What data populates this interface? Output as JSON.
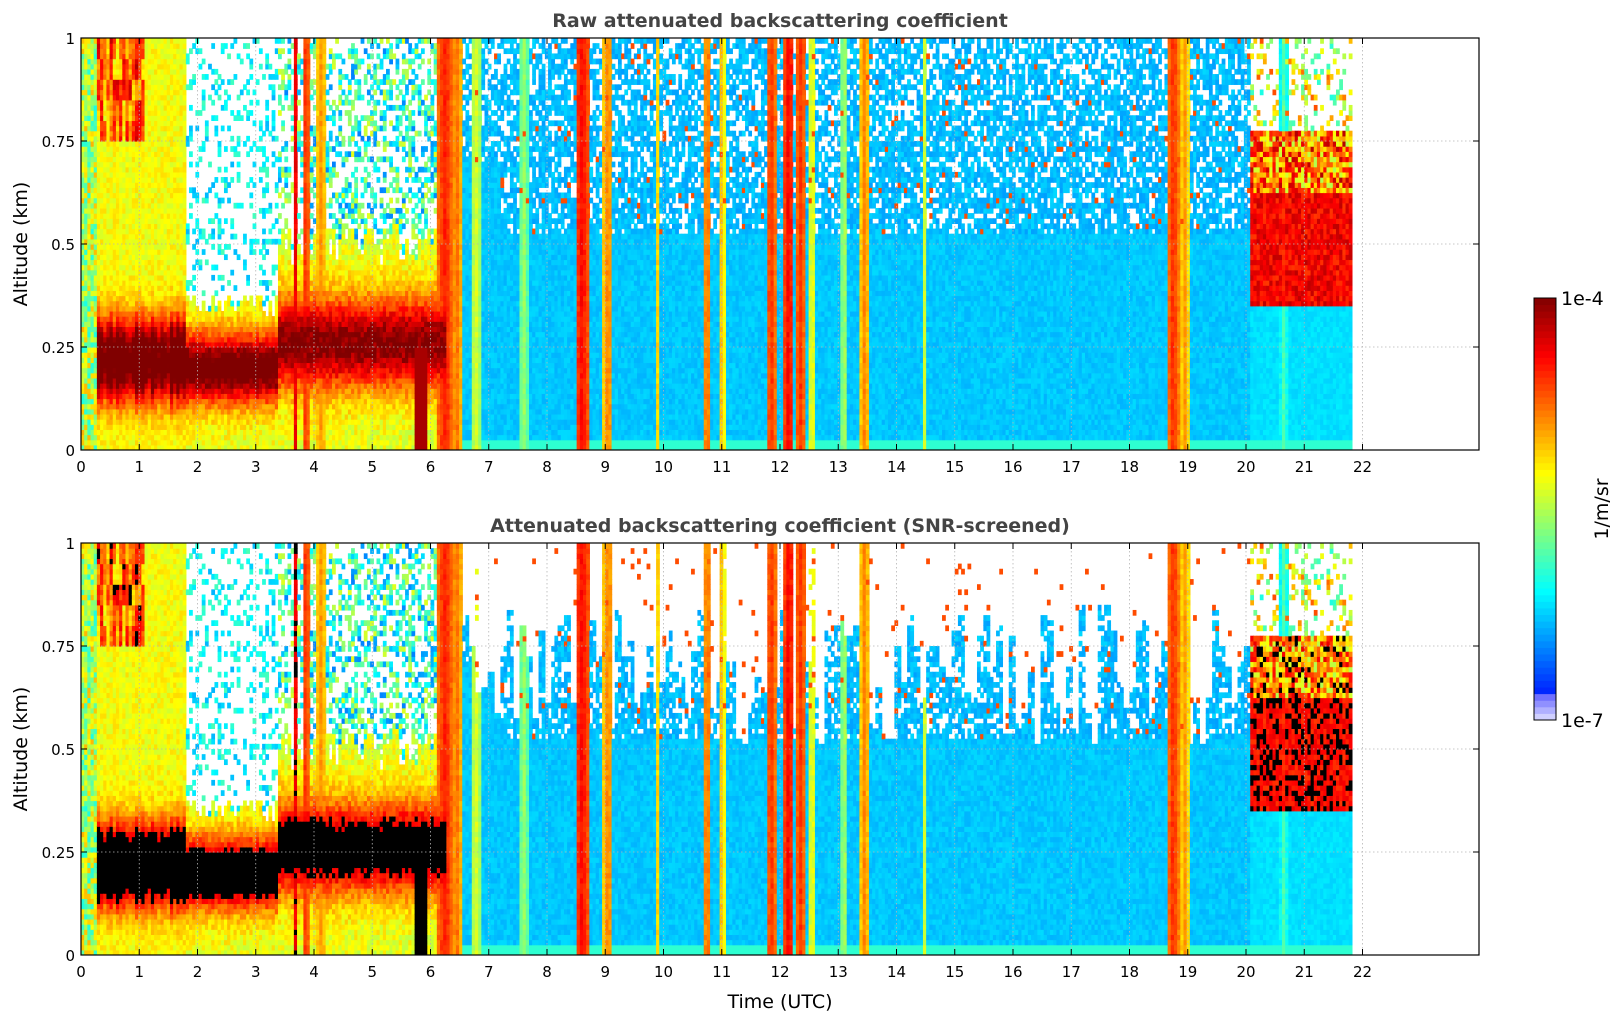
{
  "chart_data": [
    {
      "type": "heatmap",
      "title": "Raw attenuated backscattering coefficient",
      "xlabel": "",
      "ylabel": "Altitude (km)",
      "xlim": [
        0,
        24
      ],
      "ylim": [
        0,
        1
      ],
      "x_ticks": [
        "0",
        "1",
        "2",
        "3",
        "4",
        "5",
        "6",
        "7",
        "8",
        "9",
        "10",
        "11",
        "12",
        "13",
        "14",
        "15",
        "16",
        "17",
        "18",
        "19",
        "20",
        "21",
        "22"
      ],
      "y_ticks": [
        "0",
        "0.25",
        "0.5",
        "0.75",
        "1"
      ],
      "grid": true,
      "data_end_time": 21.8
    },
    {
      "type": "heatmap",
      "title": "Attenuated backscattering coefficient (SNR-screened)",
      "xlabel": "Time (UTC)",
      "ylabel": "Altitude (km)",
      "xlim": [
        0,
        24
      ],
      "ylim": [
        0,
        1
      ],
      "x_ticks": [
        "0",
        "1",
        "2",
        "3",
        "4",
        "5",
        "6",
        "7",
        "8",
        "9",
        "10",
        "11",
        "12",
        "13",
        "14",
        "15",
        "16",
        "17",
        "18",
        "19",
        "20",
        "21",
        "22"
      ],
      "y_ticks": [
        "0",
        "0.25",
        "0.5",
        "0.75",
        "1"
      ],
      "grid": true,
      "data_end_time": 21.8
    }
  ],
  "colorbar": {
    "label": "1/m/sr",
    "max_label": "1e-4",
    "min_label": "1e-7",
    "scale": "log",
    "colormap": "jet",
    "range": [
      1e-07,
      0.0001
    ]
  }
}
